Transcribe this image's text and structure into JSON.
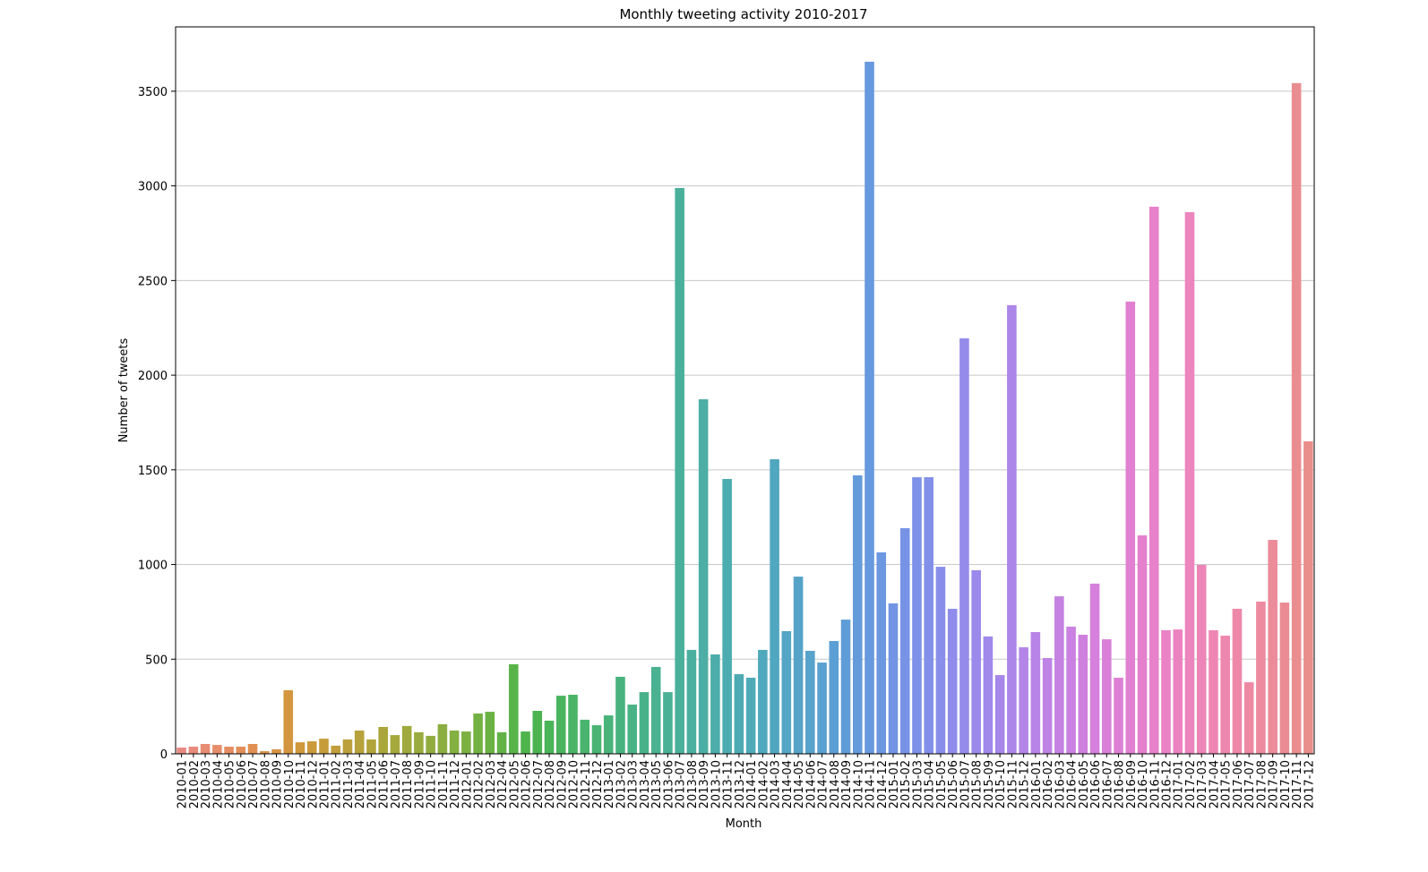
{
  "chart_data": {
    "type": "bar",
    "title": "Monthly tweeting activity 2010-2017",
    "xlabel": "Month",
    "ylabel": "Number of tweets",
    "categories": [
      "2010-01",
      "2010-02",
      "2010-03",
      "2010-04",
      "2010-05",
      "2010-06",
      "2010-07",
      "2010-08",
      "2010-09",
      "2010-10",
      "2010-11",
      "2010-12",
      "2011-01",
      "2011-02",
      "2011-03",
      "2011-04",
      "2011-05",
      "2011-06",
      "2011-07",
      "2011-08",
      "2011-09",
      "2011-10",
      "2011-11",
      "2011-12",
      "2012-01",
      "2012-02",
      "2012-03",
      "2012-04",
      "2012-05",
      "2012-06",
      "2012-07",
      "2012-08",
      "2012-09",
      "2012-10",
      "2012-11",
      "2012-12",
      "2013-01",
      "2013-02",
      "2013-03",
      "2013-04",
      "2013-05",
      "2013-06",
      "2013-07",
      "2013-08",
      "2013-09",
      "2013-10",
      "2013-11",
      "2013-12",
      "2014-01",
      "2014-02",
      "2014-03",
      "2014-04",
      "2014-05",
      "2014-06",
      "2014-07",
      "2014-08",
      "2014-09",
      "2014-10",
      "2014-11",
      "2014-12",
      "2015-01",
      "2015-02",
      "2015-03",
      "2015-04",
      "2015-05",
      "2015-06",
      "2015-07",
      "2015-08",
      "2015-09",
      "2015-10",
      "2015-11",
      "2015-12",
      "2016-01",
      "2016-02",
      "2016-03",
      "2016-04",
      "2016-05",
      "2016-06",
      "2016-07",
      "2016-08",
      "2016-09",
      "2016-10",
      "2016-11",
      "2016-12",
      "2017-01",
      "2017-02",
      "2017-03",
      "2017-04",
      "2017-05",
      "2017-06",
      "2017-07",
      "2017-08",
      "2017-09",
      "2017-10",
      "2017-11",
      "2017-12"
    ],
    "values": [
      33,
      38,
      52,
      47,
      38,
      38,
      52,
      14,
      24,
      336,
      61,
      66,
      80,
      43,
      76,
      123,
      76,
      142,
      99,
      147,
      114,
      95,
      156,
      123,
      118,
      213,
      222,
      114,
      473,
      118,
      227,
      175,
      307,
      312,
      180,
      151,
      203,
      407,
      260,
      326,
      459,
      326,
      2989,
      549,
      1873,
      525,
      1452,
      421,
      402,
      549,
      1556,
      648,
      936,
      544,
      482,
      596,
      709,
      1471,
      3656,
      1064,
      795,
      1192,
      1461,
      1461,
      988,
      766,
      2195,
      970,
      620,
      416,
      2370,
      563,
      643,
      506,
      832,
      672,
      629,
      899,
      605,
      402,
      2389,
      1154,
      2890,
      653,
      657,
      2861,
      998,
      653,
      624,
      766,
      378,
      804,
      1130,
      799,
      3543,
      1651
    ],
    "colors": [
      "#e88a84",
      "#e88b7c",
      "#e88c74",
      "#e78d6c",
      "#e58e63",
      "#e28f5a",
      "#df9052",
      "#db924a",
      "#d79443",
      "#d3963e",
      "#cf983c",
      "#cb9a3b",
      "#c69c3b",
      "#c19e3b",
      "#bca03b",
      "#b7a23b",
      "#b1a43b",
      "#aba63b",
      "#a5a83c",
      "#9fa93d",
      "#99ab3e",
      "#92ac3f",
      "#8bae40",
      "#84af41",
      "#7cb042",
      "#74b143",
      "#6bb244",
      "#62b346",
      "#58b348",
      "#4fb44b",
      "#4bb451",
      "#4ab458",
      "#4ab45f",
      "#49b466",
      "#49b46d",
      "#49b473",
      "#49b47a",
      "#49b380",
      "#49b386",
      "#4ab28b",
      "#4ab291",
      "#4ab196",
      "#4bb09b",
      "#4bafa0",
      "#4caea5",
      "#4cadaa",
      "#4dacaf",
      "#4eabb3",
      "#4faab8",
      "#50a9bc",
      "#51a7c0",
      "#53a6c4",
      "#55a4c8",
      "#57a3cc",
      "#59a1d0",
      "#5c9fd4",
      "#5f9dd8",
      "#639bdb",
      "#6799de",
      "#6c97e1",
      "#7195e4",
      "#7793e6",
      "#7d91e8",
      "#8390e9",
      "#898eea",
      "#8f8ceb",
      "#958beb",
      "#9b89eb",
      "#a188eb",
      "#a787ea",
      "#ad86e9",
      "#b385e8",
      "#b984e7",
      "#bf83e5",
      "#c582e3",
      "#ca81e1",
      "#cf80de",
      "#d480dc",
      "#d980d9",
      "#dd80d5",
      "#e180d2",
      "#e480ce",
      "#e781ca",
      "#e982c6",
      "#eb83c1",
      "#ec84bd",
      "#ed85b8",
      "#ee86b3",
      "#ee87ae",
      "#ee88a9",
      "#ee89a4",
      "#ed8a9f",
      "#ec8b9a",
      "#eb8c95",
      "#ea8d90",
      "#e98e8b"
    ],
    "ylim": [
      0,
      3840
    ],
    "yticks": [
      0,
      500,
      1000,
      1500,
      2000,
      2500,
      3000,
      3500
    ],
    "grid": true
  }
}
